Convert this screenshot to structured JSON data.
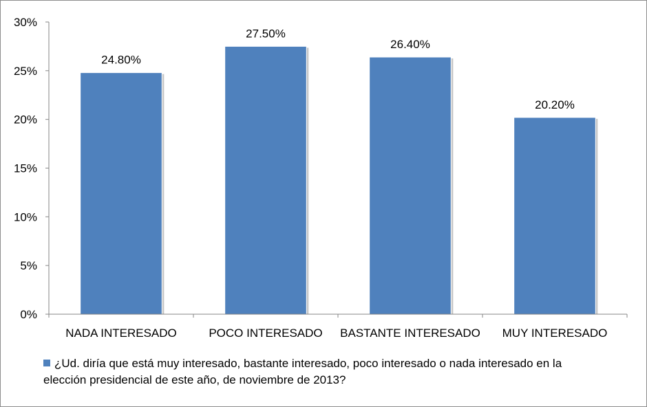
{
  "chart_data": {
    "type": "bar",
    "categories": [
      "NADA INTERESADO",
      "POCO INTERESADO",
      "BASTANTE INTERESADO",
      "MUY INTERESADO"
    ],
    "series": [
      {
        "name": "¿Ud. diría que está muy interesado, bastante interesado, poco interesado o nada interesado en la elección presidencial de este año, de noviembre de 2013?",
        "values": [
          24.8,
          27.5,
          26.4,
          20.2
        ],
        "labels": [
          "24.80%",
          "27.50%",
          "26.40%",
          "20.20%"
        ],
        "color": "#4f81bd"
      }
    ],
    "ylim": [
      0,
      30
    ],
    "yticks": [
      0,
      5,
      10,
      15,
      20,
      25,
      30
    ],
    "ytick_labels": [
      "0%",
      "5%",
      "10%",
      "15%",
      "20%",
      "25%",
      "30%"
    ],
    "grid": false,
    "legend_position": "bottom-left",
    "title": "",
    "xlabel": "",
    "ylabel": ""
  }
}
